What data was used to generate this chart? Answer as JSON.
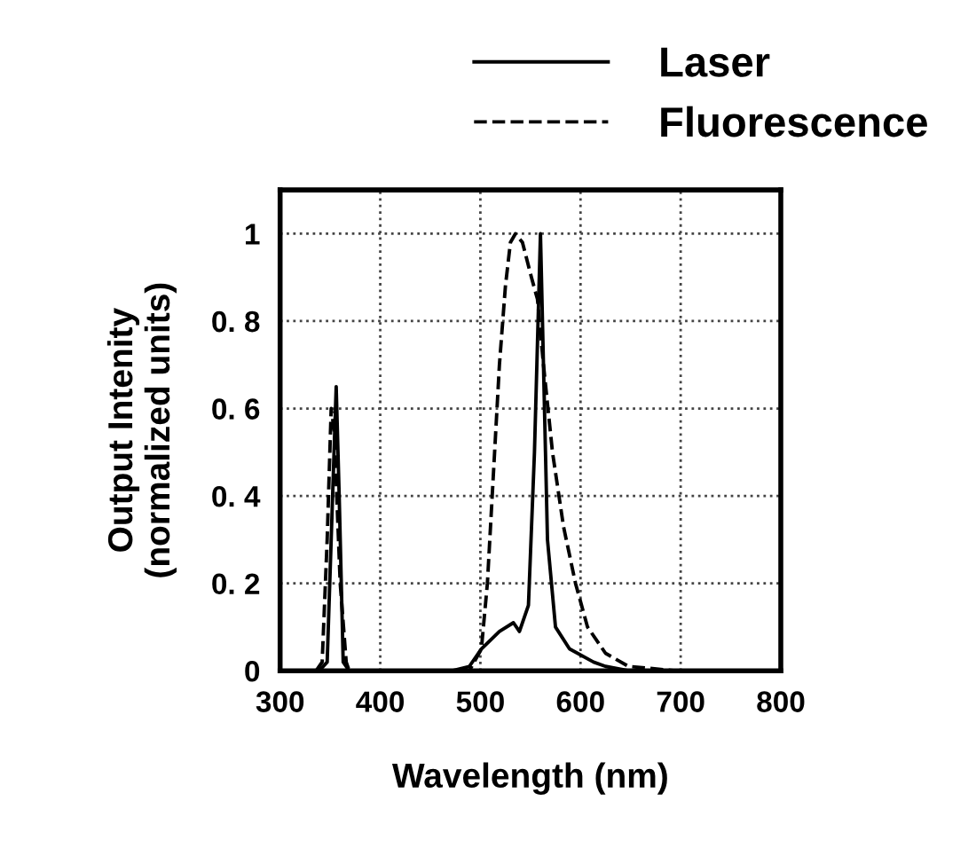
{
  "chart_data": {
    "type": "line",
    "xlabel": "Wavelength (nm)",
    "ylabel": "Output Intenity\n(normalized units)",
    "xlim": [
      300,
      800
    ],
    "xticks": [
      300,
      400,
      500,
      600,
      700,
      800
    ],
    "ylim": [
      0,
      1.1
    ],
    "yticks": [
      {
        "value": 0,
        "label": "0"
      },
      {
        "value": 0.2,
        "label": "0. 2"
      },
      {
        "value": 0.4,
        "label": "0. 4"
      },
      {
        "value": 0.6,
        "label": "0. 6"
      },
      {
        "value": 0.8,
        "label": "0. 8"
      },
      {
        "value": 1,
        "label": "1"
      }
    ],
    "grid": true,
    "legend": "top",
    "marker": "none",
    "series": [
      {
        "name": "Laser",
        "color": "#000000",
        "line_style": "solid",
        "x": [
          300,
          339,
          347,
          351,
          356,
          359,
          363,
          369,
          472,
          489,
          501,
          519,
          533,
          539,
          548,
          554,
          560,
          563,
          567,
          575,
          589,
          613,
          625,
          648,
          800
        ],
        "values": [
          0,
          0,
          0.02,
          0.3,
          0.65,
          0.4,
          0.02,
          0,
          0,
          0.01,
          0.05,
          0.09,
          0.11,
          0.09,
          0.15,
          0.5,
          1.0,
          0.7,
          0.3,
          0.1,
          0.05,
          0.02,
          0.01,
          0,
          0
        ]
      },
      {
        "name": "Fluorescence",
        "color": "#000000",
        "line_style": "dashed",
        "x": [
          300,
          336,
          342,
          347,
          351,
          354,
          360,
          366,
          369,
          489,
          501,
          507,
          513,
          519,
          525,
          530,
          535,
          542,
          551,
          557,
          563,
          572,
          583,
          595,
          607,
          625,
          648,
          695,
          800
        ],
        "values": [
          0,
          0,
          0.02,
          0.3,
          0.6,
          0.55,
          0.2,
          0.02,
          0,
          0,
          0.05,
          0.2,
          0.45,
          0.7,
          0.88,
          0.98,
          1.0,
          0.98,
          0.9,
          0.85,
          0.7,
          0.5,
          0.33,
          0.2,
          0.1,
          0.04,
          0.01,
          0,
          0
        ]
      }
    ]
  }
}
